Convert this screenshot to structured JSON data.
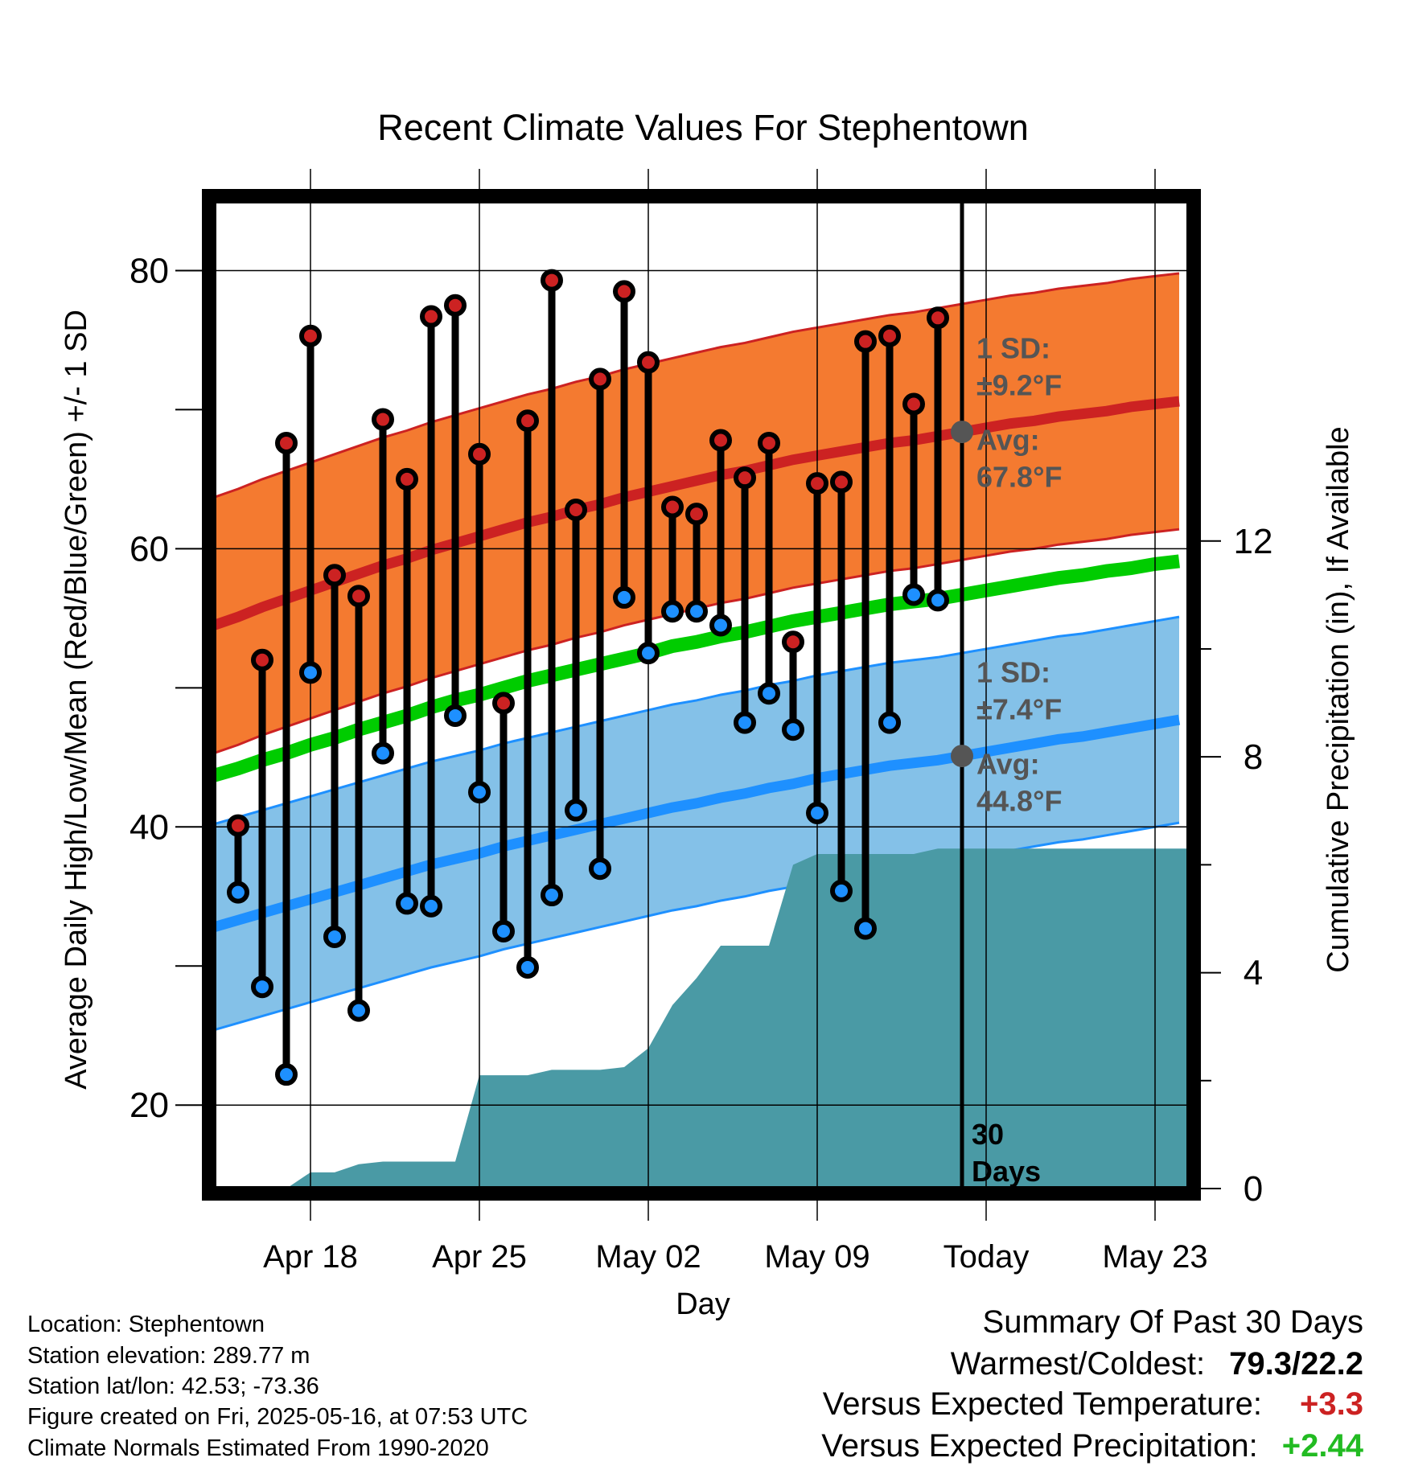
{
  "chart_data": {
    "type": "line",
    "title": "Recent Climate Values For Stephentown",
    "xlabel": "Day",
    "ylabel": "Average Daily High/Low/Mean (Red/Blue/Green) +/- 1 SD",
    "y2label": "Cumulative Precipitation (in), If Available",
    "ylim": [
      14,
      85
    ],
    "y2lim": [
      0,
      18.3
    ],
    "yticks": [
      "20",
      "40",
      "60",
      "80"
    ],
    "y2ticks": [
      "0",
      "4",
      "8",
      "12"
    ],
    "xticks": [
      "Apr 18",
      "Apr 25",
      "May 02",
      "May 09",
      "Today",
      "May 23"
    ],
    "dates": [
      "2025-04-15",
      "2025-04-16",
      "2025-04-17",
      "2025-04-18",
      "2025-04-19",
      "2025-04-20",
      "2025-04-21",
      "2025-04-22",
      "2025-04-23",
      "2025-04-24",
      "2025-04-25",
      "2025-04-26",
      "2025-04-27",
      "2025-04-28",
      "2025-04-29",
      "2025-04-30",
      "2025-05-01",
      "2025-05-02",
      "2025-05-03",
      "2025-05-04",
      "2025-05-05",
      "2025-05-06",
      "2025-05-07",
      "2025-05-08",
      "2025-05-09",
      "2025-05-10",
      "2025-05-11",
      "2025-05-12",
      "2025-05-13",
      "2025-05-14",
      "2025-05-15",
      "2025-05-16",
      "2025-05-17",
      "2025-05-18",
      "2025-05-19",
      "2025-05-20",
      "2025-05-21",
      "2025-05-22",
      "2025-05-23",
      "2025-05-24",
      "2025-05-25"
    ],
    "series": [
      {
        "name": "High",
        "color": "#cc2222",
        "values": [
          null,
          40.1,
          52.0,
          67.6,
          75.3,
          58.1,
          56.6,
          69.3,
          65.0,
          76.7,
          77.5,
          66.8,
          48.9,
          69.2,
          79.3,
          62.8,
          72.2,
          78.5,
          73.4,
          63.0,
          62.5,
          67.8,
          65.1,
          67.6,
          53.3,
          64.7,
          64.8,
          74.9,
          75.3,
          70.4,
          76.6,
          null,
          null,
          null,
          null,
          null,
          null,
          null,
          null,
          null,
          null
        ]
      },
      {
        "name": "Low",
        "color": "#1e90ff",
        "values": [
          null,
          35.3,
          28.5,
          22.2,
          51.1,
          32.1,
          26.8,
          45.3,
          34.5,
          34.3,
          48.0,
          42.5,
          32.5,
          29.9,
          35.1,
          41.2,
          37.0,
          56.5,
          52.5,
          55.5,
          55.5,
          54.5,
          47.5,
          49.6,
          47.0,
          41.0,
          35.4,
          32.7,
          47.5,
          56.7,
          56.3,
          null,
          null,
          null,
          null,
          null,
          null,
          null,
          null,
          null,
          null
        ]
      },
      {
        "name": "Normal High",
        "color": "#cc2222",
        "values": [
          54.5,
          55.1,
          55.8,
          56.4,
          57.0,
          57.6,
          58.2,
          58.8,
          59.3,
          59.9,
          60.4,
          60.9,
          61.4,
          61.9,
          62.3,
          62.8,
          63.2,
          63.7,
          64.1,
          64.5,
          64.9,
          65.3,
          65.6,
          66.0,
          66.4,
          66.7,
          67.0,
          67.3,
          67.6,
          67.8,
          68.1,
          68.4,
          68.7,
          69.0,
          69.2,
          69.5,
          69.7,
          69.9,
          70.2,
          70.4,
          70.6
        ]
      },
      {
        "name": "Normal Low",
        "color": "#1e90ff",
        "values": [
          32.8,
          33.3,
          33.8,
          34.3,
          34.8,
          35.3,
          35.8,
          36.3,
          36.8,
          37.3,
          37.7,
          38.1,
          38.6,
          39.0,
          39.4,
          39.8,
          40.2,
          40.6,
          41.0,
          41.4,
          41.7,
          42.1,
          42.4,
          42.8,
          43.1,
          43.5,
          43.8,
          44.1,
          44.4,
          44.6,
          44.8,
          45.1,
          45.4,
          45.7,
          46.0,
          46.3,
          46.5,
          46.8,
          47.1,
          47.4,
          47.7
        ]
      },
      {
        "name": "Normal Mean",
        "color": "#00cc00",
        "values": [
          43.7,
          44.2,
          44.8,
          45.3,
          45.9,
          46.4,
          47.0,
          47.5,
          48.0,
          48.6,
          49.1,
          49.5,
          50.0,
          50.5,
          50.9,
          51.3,
          51.7,
          52.1,
          52.5,
          53.0,
          53.3,
          53.7,
          54.0,
          54.4,
          54.8,
          55.1,
          55.4,
          55.7,
          56.0,
          56.2,
          56.4,
          56.7,
          57.0,
          57.3,
          57.6,
          57.9,
          58.1,
          58.4,
          58.6,
          58.9,
          59.1
        ]
      },
      {
        "name": "Cumulative Precipitation",
        "color": "#4a9aa5",
        "values": [
          null,
          null,
          null,
          0.0,
          0.3,
          0.3,
          0.45,
          0.5,
          0.5,
          0.5,
          0.5,
          2.1,
          2.1,
          2.1,
          2.2,
          2.2,
          2.2,
          2.25,
          2.6,
          3.4,
          3.9,
          4.5,
          4.5,
          4.5,
          6.0,
          6.2,
          6.2,
          6.2,
          6.2,
          6.2,
          6.3,
          6.3,
          6.3,
          6.3,
          6.3,
          6.3,
          6.3,
          6.3,
          6.3,
          6.3,
          6.3
        ]
      }
    ],
    "sd_high_text": [
      "1 SD:",
      "±9.2°F"
    ],
    "avg_high_text": [
      "Avg:",
      "67.8°F"
    ],
    "sd_low_text": [
      "1 SD:",
      "±7.4°F"
    ],
    "avg_low_text": [
      "Avg:",
      "44.8°F"
    ],
    "today_note": [
      "30",
      "Days"
    ],
    "today_index": 31,
    "sd_high": 9.2,
    "sd_low": 7.4,
    "colors": {
      "high_band": "#f47a30",
      "low_band": "#84c1e8",
      "precip": "#4a9aa5",
      "marker": "#555555",
      "mean": "#00cc00"
    }
  },
  "footer": {
    "location": "Location: Stephentown",
    "elevation": "Station elevation: 289.77 m",
    "latlon": "Station lat/lon: 42.53; -73.36",
    "created": "Figure created on Fri, 2025-05-16, at 07:53 UTC",
    "normals": "Climate Normals Estimated From 1990-2020"
  },
  "summary": {
    "title": "Summary Of Past 30 Days",
    "warm_cold_label": "Warmest/Coldest:",
    "warm_value": "79.3",
    "cold_value": "22.2",
    "temp_label": "Versus Expected Temperature:",
    "temp_value": "+3.3",
    "precip_label": "Versus Expected Precipitation:",
    "precip_value": "+2.44",
    "colors": {
      "temp": "#cc2222",
      "precip": "#22bb22"
    }
  }
}
